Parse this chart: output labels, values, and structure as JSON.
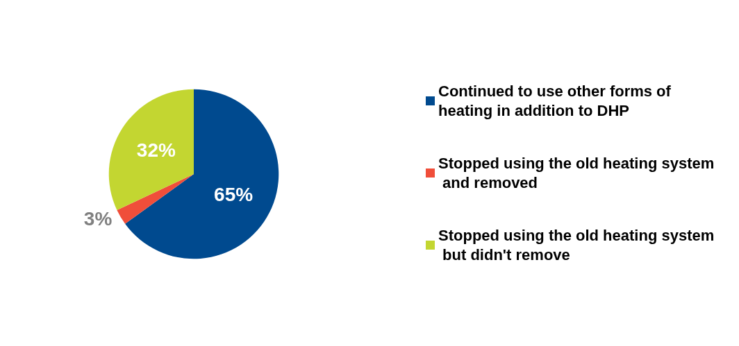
{
  "chart_data": {
    "type": "pie",
    "categories": [
      "Continued to use other forms of heating in addition to DHP",
      "Stopped using the old heating system and removed",
      "Stopped using the old heating system but didn't remove"
    ],
    "values": [
      65,
      3,
      32
    ],
    "colors": [
      "#004a8f",
      "#f04e3a",
      "#c3d631"
    ],
    "value_labels": [
      "65%",
      "3%",
      "32%"
    ],
    "legend": "right"
  }
}
